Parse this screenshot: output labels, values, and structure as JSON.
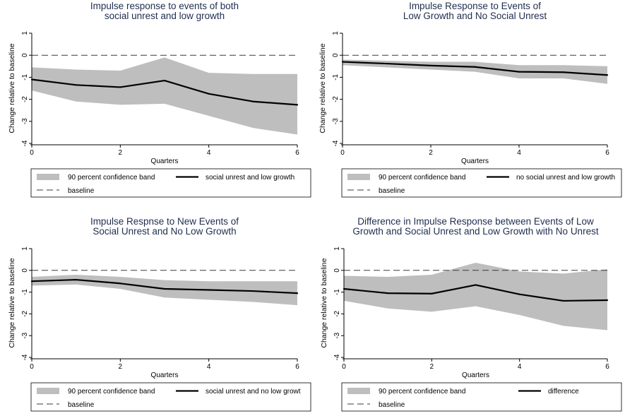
{
  "chart_data": [
    {
      "type": "line",
      "title_lines": [
        "Impulse response to events of both",
        "social unrest and low growth"
      ],
      "xlabel": "Quarters",
      "ylabel": "Change relative to baseline",
      "xlim": [
        0,
        6
      ],
      "ylim": [
        -4,
        1
      ],
      "xticks": [
        0,
        2,
        4,
        6
      ],
      "yticks": [
        -4,
        -3,
        -2,
        -1,
        0,
        1
      ],
      "x": [
        0,
        1,
        2,
        3,
        4,
        5,
        6
      ],
      "band": {
        "name": "90 percent confidence band",
        "lower": [
          -1.6,
          -2.1,
          -2.25,
          -2.2,
          -2.75,
          -3.3,
          -3.6
        ],
        "upper": [
          -0.55,
          -0.65,
          -0.7,
          -0.1,
          -0.8,
          -0.85,
          -0.85
        ]
      },
      "line": {
        "name": "social unrest and low growth",
        "values": [
          -1.1,
          -1.35,
          -1.45,
          -1.15,
          -1.75,
          -2.1,
          -2.25
        ]
      },
      "baseline": {
        "name": "baseline",
        "value": 0
      },
      "legend": "bottom"
    },
    {
      "type": "line",
      "title_lines": [
        "Impulse Response to Events of",
        "Low Growth and No Social Unrest"
      ],
      "xlabel": "Quarters",
      "ylabel": "Change relative to baseline",
      "xlim": [
        0,
        6
      ],
      "ylim": [
        -4,
        1
      ],
      "xticks": [
        0,
        2,
        4,
        6
      ],
      "yticks": [
        -4,
        -3,
        -2,
        -1,
        0,
        1
      ],
      "x": [
        0,
        1,
        2,
        3,
        4,
        5,
        6
      ],
      "band": {
        "name": "90 percent confidence band",
        "lower": [
          -0.45,
          -0.55,
          -0.65,
          -0.75,
          -1.05,
          -1.05,
          -1.3
        ],
        "upper": [
          -0.2,
          -0.25,
          -0.3,
          -0.3,
          -0.45,
          -0.45,
          -0.5
        ]
      },
      "line": {
        "name": "no social unrest and low growth",
        "values": [
          -0.3,
          -0.38,
          -0.47,
          -0.53,
          -0.75,
          -0.77,
          -0.9
        ]
      },
      "baseline": {
        "name": "baseline",
        "value": 0
      },
      "legend": "bottom"
    },
    {
      "type": "line",
      "title_lines": [
        "Impulse Respnse to New Events of",
        "Social Unrest and No Low Growth"
      ],
      "xlabel": "Quarters",
      "ylabel": "Change relative to baseline",
      "xlim": [
        0,
        6
      ],
      "ylim": [
        -4,
        1
      ],
      "xticks": [
        0,
        2,
        4,
        6
      ],
      "yticks": [
        -4,
        -3,
        -2,
        -1,
        0,
        1
      ],
      "x": [
        0,
        1,
        2,
        3,
        4,
        5,
        6
      ],
      "band": {
        "name": "90 percent confidence band",
        "lower": [
          -0.7,
          -0.65,
          -0.85,
          -1.25,
          -1.35,
          -1.45,
          -1.6
        ],
        "upper": [
          -0.3,
          -0.2,
          -0.3,
          -0.45,
          -0.5,
          -0.5,
          -0.5
        ]
      },
      "line": {
        "name": "social unrest and no low growt",
        "values": [
          -0.5,
          -0.43,
          -0.6,
          -0.85,
          -0.9,
          -0.95,
          -1.05
        ]
      },
      "baseline": {
        "name": "baseline",
        "value": 0
      },
      "legend": "bottom"
    },
    {
      "type": "line",
      "title_lines": [
        "Difference in Impulse Response between Events of Low",
        "Growth and Social Unrest and Low Growth with No Unrest"
      ],
      "xlabel": "Quarters",
      "ylabel": "Change relative to baseline",
      "xlim": [
        0,
        6
      ],
      "ylim": [
        -4,
        1
      ],
      "xticks": [
        0,
        2,
        4,
        6
      ],
      "yticks": [
        -4,
        -3,
        -2,
        -1,
        0,
        1
      ],
      "x": [
        0,
        1,
        2,
        3,
        4,
        5,
        6
      ],
      "band": {
        "name": "90 percent confidence band",
        "lower": [
          -1.4,
          -1.75,
          -1.9,
          -1.65,
          -2.05,
          -2.55,
          -2.75
        ],
        "upper": [
          -0.25,
          -0.3,
          -0.2,
          0.35,
          -0.05,
          -0.15,
          0.05
        ]
      },
      "line": {
        "name": "difference",
        "values": [
          -0.85,
          -1.05,
          -1.07,
          -0.67,
          -1.1,
          -1.4,
          -1.37
        ]
      },
      "baseline": {
        "name": "baseline",
        "value": 0
      },
      "legend": "bottom"
    }
  ],
  "colors": {
    "band": "#bebebe",
    "line": "#000000",
    "baseline": "#3a3a3a",
    "title": "#1e2d4f",
    "axis": "#000000"
  }
}
